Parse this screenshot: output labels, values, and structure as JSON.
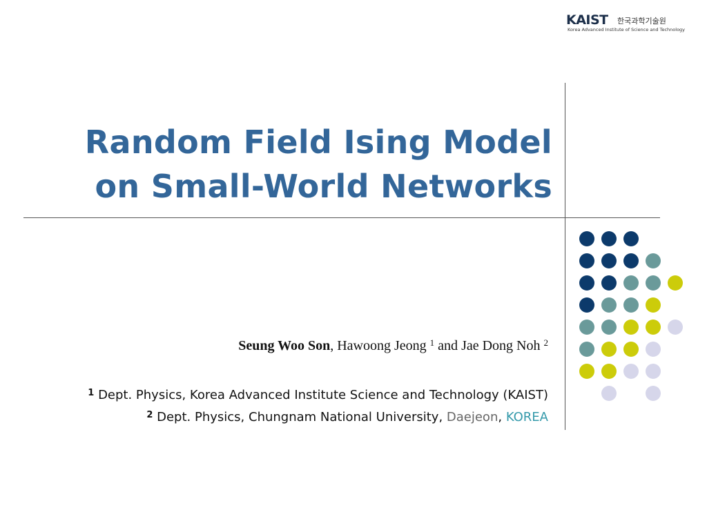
{
  "logo": {
    "name": "KAIST",
    "korean": "한국과학기술원",
    "subtitle": "Korea Advanced Institute of Science and Technology"
  },
  "title": {
    "line1": "Random Field Ising Model",
    "line2": "on Small-World Networks"
  },
  "authors": {
    "first": "Seung Woo Son",
    "sep1": ",",
    "second": "Hawoong Jeong",
    "second_sup": "1",
    "conj": "and",
    "third": "Jae Dong Noh",
    "third_sup": "2"
  },
  "affiliations": [
    {
      "num": "1",
      "text": "Dept. Physics, Korea Advanced Institute Science and Technology (KAIST)"
    },
    {
      "num": "2",
      "text": "Dept. Physics, Chungnam National University, ",
      "city": "Daejeon",
      "sep": ", ",
      "country": "KOREA"
    }
  ],
  "dot_colors": {
    "navy": "#0c3a6b",
    "teal": "#6a9a9a",
    "olive": "#cccc0a",
    "lavender": "#d6d6ea"
  },
  "dot_grid": [
    [
      "navy",
      "navy",
      "navy",
      "",
      ""
    ],
    [
      "navy",
      "navy",
      "navy",
      "teal",
      ""
    ],
    [
      "navy",
      "navy",
      "teal",
      "teal",
      "olive"
    ],
    [
      "navy",
      "teal",
      "teal",
      "olive",
      ""
    ],
    [
      "teal",
      "teal",
      "olive",
      "olive",
      "lavender"
    ],
    [
      "teal",
      "olive",
      "olive",
      "lavender",
      ""
    ],
    [
      "olive",
      "olive",
      "lavender",
      "lavender",
      ""
    ],
    [
      "",
      "lavender",
      "",
      "lavender",
      ""
    ]
  ]
}
